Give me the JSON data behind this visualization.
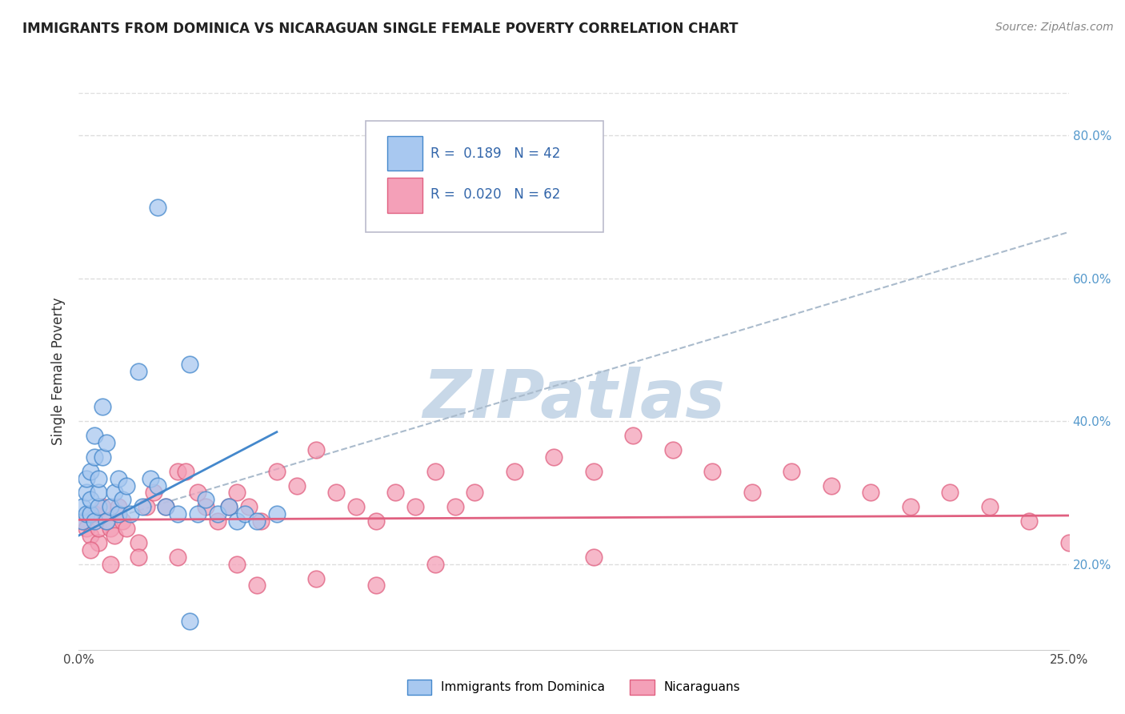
{
  "title": "IMMIGRANTS FROM DOMINICA VS NICARAGUAN SINGLE FEMALE POVERTY CORRELATION CHART",
  "source": "Source: ZipAtlas.com",
  "ylabel": "Single Female Poverty",
  "legend_label1": "Immigrants from Dominica",
  "legend_label2": "Nicaraguans",
  "color_blue": "#A8C8F0",
  "color_pink": "#F4A0B8",
  "color_blue_line": "#4488CC",
  "color_pink_line": "#E06080",
  "color_dashed": "#AABBCC",
  "xlim": [
    0.0,
    0.25
  ],
  "ylim": [
    0.08,
    0.86
  ],
  "xtick_positions": [
    0.0,
    0.25
  ],
  "xtick_labels": [
    "0.0%",
    "25.0%"
  ],
  "ytick_positions": [
    0.2,
    0.4,
    0.6,
    0.8
  ],
  "ytick_labels": [
    "20.0%",
    "40.0%",
    "60.0%",
    "80.0%"
  ],
  "blue_x": [
    0.001,
    0.001,
    0.002,
    0.002,
    0.002,
    0.003,
    0.003,
    0.003,
    0.004,
    0.004,
    0.004,
    0.005,
    0.005,
    0.005,
    0.006,
    0.006,
    0.007,
    0.007,
    0.008,
    0.009,
    0.01,
    0.01,
    0.011,
    0.012,
    0.013,
    0.015,
    0.016,
    0.018,
    0.02,
    0.022,
    0.025,
    0.028,
    0.03,
    0.032,
    0.035,
    0.038,
    0.04,
    0.042,
    0.045,
    0.05,
    0.02,
    0.028
  ],
  "blue_y": [
    0.26,
    0.28,
    0.27,
    0.3,
    0.32,
    0.27,
    0.29,
    0.33,
    0.26,
    0.35,
    0.38,
    0.28,
    0.3,
    0.32,
    0.35,
    0.42,
    0.26,
    0.37,
    0.28,
    0.3,
    0.27,
    0.32,
    0.29,
    0.31,
    0.27,
    0.47,
    0.28,
    0.32,
    0.31,
    0.28,
    0.27,
    0.48,
    0.27,
    0.29,
    0.27,
    0.28,
    0.26,
    0.27,
    0.26,
    0.27,
    0.7,
    0.12
  ],
  "pink_x": [
    0.001,
    0.002,
    0.003,
    0.004,
    0.005,
    0.005,
    0.006,
    0.007,
    0.008,
    0.009,
    0.01,
    0.011,
    0.012,
    0.015,
    0.017,
    0.019,
    0.022,
    0.025,
    0.027,
    0.03,
    0.032,
    0.035,
    0.038,
    0.04,
    0.043,
    0.046,
    0.05,
    0.055,
    0.06,
    0.065,
    0.07,
    0.075,
    0.08,
    0.085,
    0.09,
    0.095,
    0.1,
    0.11,
    0.12,
    0.13,
    0.14,
    0.15,
    0.16,
    0.17,
    0.18,
    0.19,
    0.2,
    0.21,
    0.22,
    0.23,
    0.24,
    0.25,
    0.13,
    0.09,
    0.06,
    0.04,
    0.025,
    0.015,
    0.008,
    0.003,
    0.075,
    0.045
  ],
  "pink_y": [
    0.26,
    0.25,
    0.24,
    0.27,
    0.23,
    0.25,
    0.28,
    0.26,
    0.25,
    0.24,
    0.28,
    0.26,
    0.25,
    0.23,
    0.28,
    0.3,
    0.28,
    0.33,
    0.33,
    0.3,
    0.28,
    0.26,
    0.28,
    0.3,
    0.28,
    0.26,
    0.33,
    0.31,
    0.36,
    0.3,
    0.28,
    0.26,
    0.3,
    0.28,
    0.33,
    0.28,
    0.3,
    0.33,
    0.35,
    0.33,
    0.38,
    0.36,
    0.33,
    0.3,
    0.33,
    0.31,
    0.3,
    0.28,
    0.3,
    0.28,
    0.26,
    0.23,
    0.21,
    0.2,
    0.18,
    0.2,
    0.21,
    0.21,
    0.2,
    0.22,
    0.17,
    0.17
  ],
  "blue_line_x": [
    0.0,
    0.05
  ],
  "blue_line_y": [
    0.24,
    0.385
  ],
  "pink_line_x": [
    0.0,
    0.25
  ],
  "pink_line_y": [
    0.262,
    0.268
  ],
  "dashed_line_x": [
    0.0,
    0.25
  ],
  "dashed_line_y": [
    0.25,
    0.665
  ],
  "watermark": "ZIPatlas",
  "watermark_color": "#C8D8E8",
  "bg_color": "#FFFFFF",
  "grid_color": "#DDDDDD"
}
